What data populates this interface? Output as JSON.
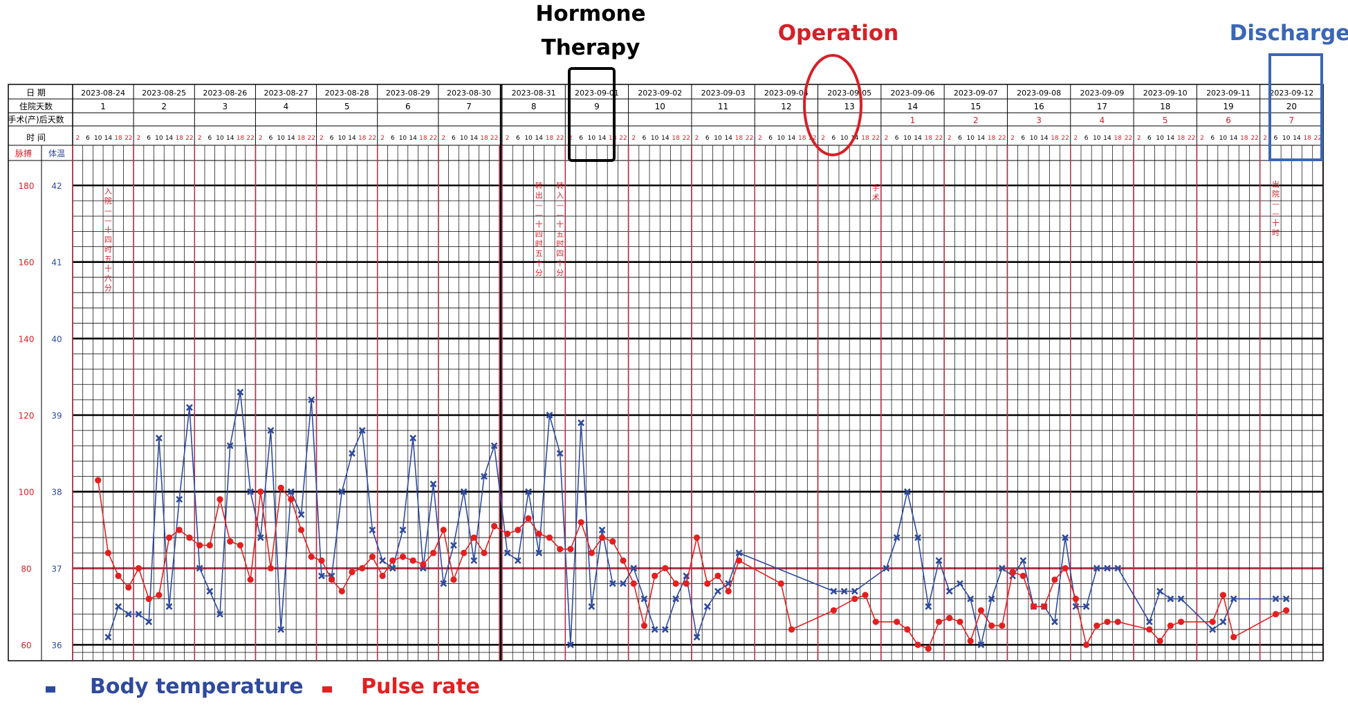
{
  "annotations": {
    "hormone_line1": "Hormone",
    "hormone_line2": "Therapy",
    "operation": "Operation",
    "discharge": "Discharge"
  },
  "legend": {
    "temperature": "Body temperature",
    "pulse": "Pulse rate"
  },
  "colors": {
    "temperature": "#2e4a9e",
    "pulse": "#e41f1f",
    "operation": "#d62027",
    "discharge": "#3a66b5",
    "hormone": "#000000",
    "gridline_red": "#b0334a"
  },
  "row_labels": {
    "date": "日  期",
    "hospital_day": "住院天数",
    "postop_day": "手术(产)后天数",
    "time": "时  间",
    "pulse": "脉搏",
    "temperature": "体温"
  },
  "times": [
    "2",
    "6",
    "10",
    "14",
    "18",
    "22"
  ],
  "axis": {
    "pulse_ticks": [
      "180",
      "160",
      "140",
      "120",
      "100",
      "80",
      "60"
    ],
    "temp_ticks": [
      "42",
      "41",
      "40",
      "39",
      "38",
      "37",
      "36"
    ]
  },
  "vertical_notes": [
    {
      "text": "入院——十四时五十六分"
    },
    {
      "text": "转出——十四时五十分"
    },
    {
      "text": "转入——十五时四十分"
    },
    {
      "text": "手术"
    },
    {
      "text": "出院——十时"
    }
  ],
  "chart_data": {
    "type": "line",
    "x_unit": "date + hour (6 slots/day: 2,6,10,14,18,22)",
    "dates": [
      "2023-08-24",
      "2023-08-25",
      "2023-08-26",
      "2023-08-27",
      "2023-08-28",
      "2023-08-29",
      "2023-08-30",
      "2023-08-31",
      "2023-09-01",
      "2023-09-02",
      "2023-09-03",
      "2023-09-04",
      "2023-09-05",
      "2023-09-06",
      "2023-09-07",
      "2023-09-08",
      "2023-09-09",
      "2023-09-10",
      "2023-09-11",
      "2023-09-12"
    ],
    "hospital_days": [
      "1",
      "2",
      "3",
      "4",
      "5",
      "6",
      "7",
      "8",
      "9",
      "10",
      "11",
      "12",
      "13",
      "14",
      "15",
      "16",
      "17",
      "18",
      "19",
      "20"
    ],
    "postop_days": [
      "",
      "",
      "",
      "",
      "",
      "",
      "",
      "",
      "",
      "",
      "",
      "",
      "",
      "1",
      "2",
      "3",
      "4",
      "5",
      "6",
      "7"
    ],
    "y_left": {
      "label": "脉搏",
      "range": [
        60,
        180
      ]
    },
    "y_right": {
      "label": "体温",
      "range": [
        36,
        42
      ]
    },
    "reference_line": {
      "temperature": 37,
      "pulse": 80
    },
    "series": [
      {
        "name": "Body temperature",
        "marker": "x",
        "points": [
          [
            "2023-08-24",
            14,
            36.1
          ],
          [
            "2023-08-24",
            18,
            36.5
          ],
          [
            "2023-08-24",
            22,
            36.4
          ],
          [
            "2023-08-25",
            2,
            36.4
          ],
          [
            "2023-08-25",
            6,
            36.3
          ],
          [
            "2023-08-25",
            10,
            38.7
          ],
          [
            "2023-08-25",
            14,
            36.5
          ],
          [
            "2023-08-25",
            18,
            37.9
          ],
          [
            "2023-08-25",
            22,
            39.1
          ],
          [
            "2023-08-26",
            2,
            37.0
          ],
          [
            "2023-08-26",
            6,
            36.7
          ],
          [
            "2023-08-26",
            10,
            36.4
          ],
          [
            "2023-08-26",
            14,
            38.6
          ],
          [
            "2023-08-26",
            18,
            39.3
          ],
          [
            "2023-08-26",
            22,
            38.0
          ],
          [
            "2023-08-27",
            2,
            37.4
          ],
          [
            "2023-08-27",
            6,
            38.8
          ],
          [
            "2023-08-27",
            10,
            36.2
          ],
          [
            "2023-08-27",
            14,
            38.0
          ],
          [
            "2023-08-27",
            18,
            37.7
          ],
          [
            "2023-08-27",
            22,
            39.2
          ],
          [
            "2023-08-28",
            2,
            36.9
          ],
          [
            "2023-08-28",
            6,
            36.9
          ],
          [
            "2023-08-28",
            10,
            38.0
          ],
          [
            "2023-08-28",
            14,
            38.5
          ],
          [
            "2023-08-28",
            18,
            38.8
          ],
          [
            "2023-08-28",
            22,
            37.5
          ],
          [
            "2023-08-29",
            2,
            37.1
          ],
          [
            "2023-08-29",
            6,
            37.0
          ],
          [
            "2023-08-29",
            10,
            37.5
          ],
          [
            "2023-08-29",
            14,
            38.7
          ],
          [
            "2023-08-29",
            18,
            37.0
          ],
          [
            "2023-08-29",
            22,
            38.1
          ],
          [
            "2023-08-30",
            2,
            36.8
          ],
          [
            "2023-08-30",
            6,
            37.3
          ],
          [
            "2023-08-30",
            10,
            38.0
          ],
          [
            "2023-08-30",
            14,
            37.1
          ],
          [
            "2023-08-30",
            18,
            38.2
          ],
          [
            "2023-08-30",
            22,
            38.6
          ],
          [
            "2023-08-31",
            2,
            37.2
          ],
          [
            "2023-08-31",
            6,
            37.1
          ],
          [
            "2023-08-31",
            10,
            38.0
          ],
          [
            "2023-08-31",
            14,
            37.2
          ],
          [
            "2023-08-31",
            18,
            39.0
          ],
          [
            "2023-08-31",
            22,
            38.5
          ],
          [
            "2023-09-01",
            2,
            36.0
          ],
          [
            "2023-09-01",
            6,
            38.9
          ],
          [
            "2023-09-01",
            10,
            36.5
          ],
          [
            "2023-09-01",
            14,
            37.5
          ],
          [
            "2023-09-01",
            18,
            36.8
          ],
          [
            "2023-09-01",
            22,
            36.8
          ],
          [
            "2023-09-02",
            2,
            37.0
          ],
          [
            "2023-09-02",
            6,
            36.6
          ],
          [
            "2023-09-02",
            10,
            36.2
          ],
          [
            "2023-09-02",
            14,
            36.2
          ],
          [
            "2023-09-02",
            18,
            36.6
          ],
          [
            "2023-09-02",
            22,
            36.9
          ],
          [
            "2023-09-03",
            2,
            36.1
          ],
          [
            "2023-09-03",
            6,
            36.5
          ],
          [
            "2023-09-03",
            10,
            36.7
          ],
          [
            "2023-09-03",
            14,
            36.8
          ],
          [
            "2023-09-03",
            18,
            37.2
          ],
          [
            "2023-09-05",
            6,
            36.7
          ],
          [
            "2023-09-05",
            10,
            36.7
          ],
          [
            "2023-09-05",
            14,
            36.7
          ],
          [
            "2023-09-06",
            2,
            37.0
          ],
          [
            "2023-09-06",
            6,
            37.4
          ],
          [
            "2023-09-06",
            10,
            38.0
          ],
          [
            "2023-09-06",
            14,
            37.4
          ],
          [
            "2023-09-06",
            18,
            36.5
          ],
          [
            "2023-09-06",
            22,
            37.1
          ],
          [
            "2023-09-07",
            2,
            36.7
          ],
          [
            "2023-09-07",
            6,
            36.8
          ],
          [
            "2023-09-07",
            10,
            36.6
          ],
          [
            "2023-09-07",
            14,
            36.0
          ],
          [
            "2023-09-07",
            18,
            36.6
          ],
          [
            "2023-09-07",
            22,
            37.0
          ],
          [
            "2023-09-08",
            2,
            36.9
          ],
          [
            "2023-09-08",
            6,
            37.1
          ],
          [
            "2023-09-08",
            10,
            36.5
          ],
          [
            "2023-09-08",
            14,
            36.5
          ],
          [
            "2023-09-08",
            18,
            36.3
          ],
          [
            "2023-09-08",
            22,
            37.4
          ],
          [
            "2023-09-09",
            2,
            36.5
          ],
          [
            "2023-09-09",
            6,
            36.5
          ],
          [
            "2023-09-09",
            10,
            37.0
          ],
          [
            "2023-09-09",
            14,
            37.0
          ],
          [
            "2023-09-09",
            18,
            37.0
          ],
          [
            "2023-09-10",
            6,
            36.3
          ],
          [
            "2023-09-10",
            10,
            36.7
          ],
          [
            "2023-09-10",
            14,
            36.6
          ],
          [
            "2023-09-10",
            18,
            36.6
          ],
          [
            "2023-09-11",
            6,
            36.2
          ],
          [
            "2023-09-11",
            10,
            36.3
          ],
          [
            "2023-09-11",
            14,
            36.6
          ],
          [
            "2023-09-12",
            6,
            36.6
          ],
          [
            "2023-09-12",
            10,
            36.6
          ]
        ]
      },
      {
        "name": "Pulse rate",
        "marker": "dot",
        "points": [
          [
            "2023-08-24",
            10,
            103
          ],
          [
            "2023-08-24",
            14,
            84
          ],
          [
            "2023-08-24",
            18,
            78
          ],
          [
            "2023-08-24",
            22,
            75
          ],
          [
            "2023-08-25",
            2,
            80
          ],
          [
            "2023-08-25",
            6,
            72
          ],
          [
            "2023-08-25",
            10,
            73
          ],
          [
            "2023-08-25",
            14,
            88
          ],
          [
            "2023-08-25",
            18,
            90
          ],
          [
            "2023-08-25",
            22,
            88
          ],
          [
            "2023-08-26",
            2,
            86
          ],
          [
            "2023-08-26",
            6,
            86
          ],
          [
            "2023-08-26",
            10,
            98
          ],
          [
            "2023-08-26",
            14,
            87
          ],
          [
            "2023-08-26",
            18,
            86
          ],
          [
            "2023-08-26",
            22,
            77
          ],
          [
            "2023-08-27",
            2,
            100
          ],
          [
            "2023-08-27",
            6,
            80
          ],
          [
            "2023-08-27",
            10,
            101
          ],
          [
            "2023-08-27",
            14,
            98
          ],
          [
            "2023-08-27",
            18,
            90
          ],
          [
            "2023-08-27",
            22,
            83
          ],
          [
            "2023-08-28",
            2,
            82
          ],
          [
            "2023-08-28",
            6,
            77
          ],
          [
            "2023-08-28",
            10,
            74
          ],
          [
            "2023-08-28",
            14,
            79
          ],
          [
            "2023-08-28",
            18,
            80
          ],
          [
            "2023-08-28",
            22,
            83
          ],
          [
            "2023-08-29",
            2,
            78
          ],
          [
            "2023-08-29",
            6,
            82
          ],
          [
            "2023-08-29",
            10,
            83
          ],
          [
            "2023-08-29",
            14,
            82
          ],
          [
            "2023-08-29",
            18,
            81
          ],
          [
            "2023-08-29",
            22,
            84
          ],
          [
            "2023-08-30",
            2,
            90
          ],
          [
            "2023-08-30",
            6,
            77
          ],
          [
            "2023-08-30",
            10,
            84
          ],
          [
            "2023-08-30",
            14,
            88
          ],
          [
            "2023-08-30",
            18,
            84
          ],
          [
            "2023-08-30",
            22,
            91
          ],
          [
            "2023-08-31",
            2,
            89
          ],
          [
            "2023-08-31",
            6,
            90
          ],
          [
            "2023-08-31",
            10,
            93
          ],
          [
            "2023-08-31",
            14,
            89
          ],
          [
            "2023-08-31",
            18,
            88
          ],
          [
            "2023-08-31",
            22,
            85
          ],
          [
            "2023-09-01",
            2,
            85
          ],
          [
            "2023-09-01",
            6,
            92
          ],
          [
            "2023-09-01",
            10,
            84
          ],
          [
            "2023-09-01",
            14,
            88
          ],
          [
            "2023-09-01",
            18,
            87
          ],
          [
            "2023-09-01",
            22,
            82
          ],
          [
            "2023-09-02",
            2,
            76
          ],
          [
            "2023-09-02",
            6,
            65
          ],
          [
            "2023-09-02",
            10,
            78
          ],
          [
            "2023-09-02",
            14,
            80
          ],
          [
            "2023-09-02",
            18,
            76
          ],
          [
            "2023-09-02",
            22,
            76
          ],
          [
            "2023-09-03",
            2,
            88
          ],
          [
            "2023-09-03",
            6,
            76
          ],
          [
            "2023-09-03",
            10,
            78
          ],
          [
            "2023-09-03",
            14,
            74
          ],
          [
            "2023-09-03",
            18,
            82
          ],
          [
            "2023-09-04",
            10,
            76
          ],
          [
            "2023-09-04",
            14,
            64
          ],
          [
            "2023-09-05",
            6,
            69
          ],
          [
            "2023-09-05",
            14,
            72
          ],
          [
            "2023-09-05",
            18,
            73
          ],
          [
            "2023-09-05",
            22,
            66
          ],
          [
            "2023-09-06",
            6,
            66
          ],
          [
            "2023-09-06",
            10,
            64
          ],
          [
            "2023-09-06",
            14,
            60
          ],
          [
            "2023-09-06",
            18,
            59
          ],
          [
            "2023-09-06",
            22,
            66
          ],
          [
            "2023-09-07",
            2,
            67
          ],
          [
            "2023-09-07",
            6,
            66
          ],
          [
            "2023-09-07",
            10,
            61
          ],
          [
            "2023-09-07",
            14,
            69
          ],
          [
            "2023-09-07",
            18,
            65
          ],
          [
            "2023-09-07",
            22,
            65
          ],
          [
            "2023-09-08",
            2,
            79
          ],
          [
            "2023-09-08",
            6,
            78
          ],
          [
            "2023-09-08",
            10,
            70
          ],
          [
            "2023-09-08",
            14,
            70
          ],
          [
            "2023-09-08",
            18,
            77
          ],
          [
            "2023-09-08",
            22,
            80
          ],
          [
            "2023-09-09",
            2,
            72
          ],
          [
            "2023-09-09",
            6,
            60
          ],
          [
            "2023-09-09",
            10,
            65
          ],
          [
            "2023-09-09",
            14,
            66
          ],
          [
            "2023-09-09",
            18,
            66
          ],
          [
            "2023-09-10",
            6,
            64
          ],
          [
            "2023-09-10",
            10,
            61
          ],
          [
            "2023-09-10",
            14,
            65
          ],
          [
            "2023-09-10",
            18,
            66
          ],
          [
            "2023-09-11",
            6,
            66
          ],
          [
            "2023-09-11",
            10,
            73
          ],
          [
            "2023-09-11",
            14,
            62
          ],
          [
            "2023-09-12",
            6,
            68
          ],
          [
            "2023-09-12",
            10,
            69
          ]
        ]
      }
    ]
  }
}
